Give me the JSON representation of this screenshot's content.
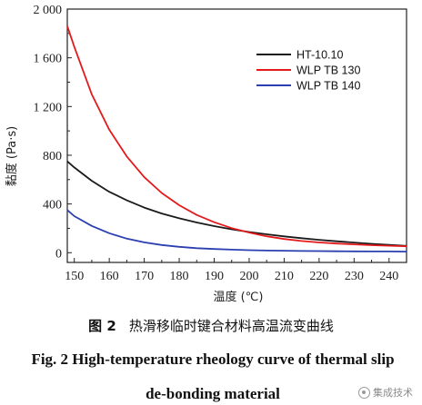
{
  "chart_data": {
    "type": "line",
    "xlabel": "温度 (℃)",
    "ylabel": "黏度 (Pa·s)",
    "xlim": [
      148,
      245
    ],
    "ylim": [
      -80,
      2000
    ],
    "x_ticks": [
      150,
      160,
      170,
      180,
      190,
      200,
      210,
      220,
      230,
      240
    ],
    "y_ticks": [
      0,
      400,
      800,
      1200,
      1600,
      2000
    ],
    "y_tick_labels": [
      "0",
      "400",
      "800",
      "1 200",
      "1 600",
      "2 000"
    ],
    "legend_position": "top-right",
    "grid": false,
    "x": [
      148,
      150,
      155,
      160,
      165,
      170,
      175,
      180,
      185,
      190,
      195,
      200,
      205,
      210,
      215,
      220,
      225,
      230,
      235,
      240,
      245
    ],
    "series": [
      {
        "name": "HT-10.10",
        "color": "#1a1a1a",
        "values": [
          750,
          700,
          590,
          500,
          430,
          370,
          322,
          282,
          248,
          218,
          192,
          170,
          151,
          134,
          119,
          106,
          94,
          83,
          73,
          64,
          56
        ]
      },
      {
        "name": "WLP TB 130",
        "color": "#e31a1c",
        "values": [
          1860,
          1690,
          1300,
          1010,
          790,
          620,
          490,
          390,
          310,
          250,
          202,
          165,
          135,
          112,
          96,
          84,
          75,
          68,
          62,
          57,
          53
        ]
      },
      {
        "name": "WLP TB 140",
        "color": "#2b3fb0",
        "values": [
          350,
          300,
          220,
          160,
          115,
          85,
          63,
          48,
          37,
          30,
          25,
          21,
          18,
          16,
          14,
          13,
          12,
          11,
          10,
          10,
          9
        ]
      }
    ]
  },
  "caption": {
    "zh_label": "图 2",
    "zh_text": "热滑移临时键合材料高温流变曲线",
    "en_line1": "Fig. 2    High-temperature rheology curve of thermal slip",
    "en_line2": "de-bonding material"
  },
  "watermark": "集成技术"
}
